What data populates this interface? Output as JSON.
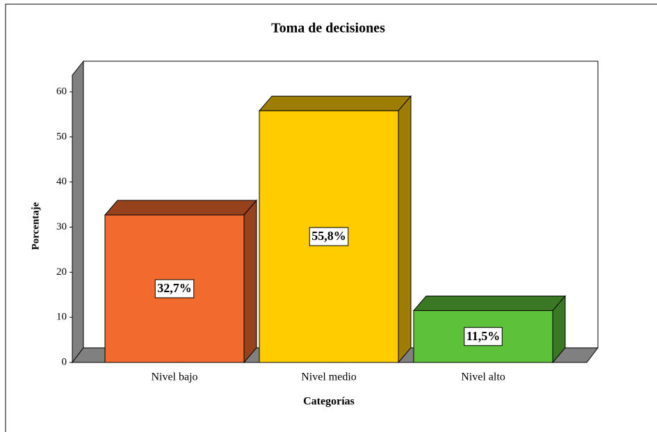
{
  "chart_data": {
    "type": "bar3d",
    "title": "Toma de decisiones",
    "ylabel": "Porcentaje",
    "xlabel": "Categorías",
    "categories": [
      "Nivel bajo",
      "Nivel medio",
      "Nivel alto"
    ],
    "values": [
      32.7,
      55.8,
      11.5
    ],
    "value_labels": [
      "32,7%",
      "55,8%",
      "11,5%"
    ],
    "colors": [
      "#f26a2e",
      "#ffcc00",
      "#5dc13a"
    ],
    "ylim": [
      0,
      60
    ],
    "yticks": [
      0,
      10,
      20,
      30,
      40,
      50,
      60
    ]
  }
}
